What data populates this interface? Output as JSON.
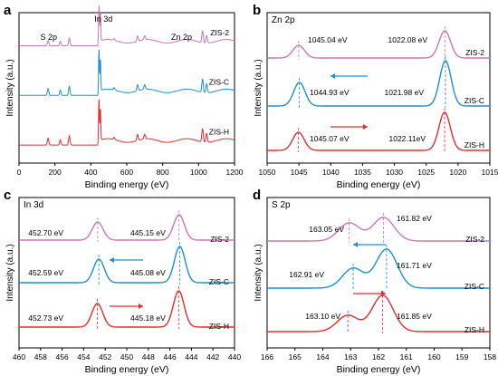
{
  "colors": {
    "zis2": "#cc77b3",
    "zisc": "#1f8fd2",
    "zish": "#e52d2d"
  },
  "chart_data": [
    {
      "panel": "a",
      "type": "line",
      "xlabel": "Binding energy (eV)",
      "ylabel": "Intensity (a.u.)",
      "xlim": [
        0,
        1200
      ],
      "xticks": [
        0,
        200,
        400,
        600,
        800,
        1000,
        1200
      ],
      "series_labels": [
        "ZIS-2",
        "ZIS-C",
        "ZIS-H"
      ],
      "peak_annotations": [
        "S 2p",
        "In 3d",
        "Zn 2p"
      ],
      "series": [
        {
          "name": "ZIS-2",
          "baseline": 0.78,
          "peaks": [
            [
              162,
              0.035
            ],
            [
              230,
              0.03
            ],
            [
              280,
              0.05
            ],
            [
              445,
              0.26
            ],
            [
              453,
              0.2
            ],
            [
              530,
              0.01
            ],
            [
              660,
              0.035
            ],
            [
              700,
              0.025
            ],
            [
              1022,
              0.08
            ],
            [
              1045,
              0.05
            ]
          ]
        },
        {
          "name": "ZIS-C",
          "baseline": 0.45,
          "peaks": [
            [
              162,
              0.045
            ],
            [
              230,
              0.035
            ],
            [
              280,
              0.06
            ],
            [
              445,
              0.3
            ],
            [
              453,
              0.22
            ],
            [
              530,
              0.015
            ],
            [
              660,
              0.04
            ],
            [
              700,
              0.03
            ],
            [
              1022,
              0.09
            ],
            [
              1045,
              0.06
            ]
          ]
        },
        {
          "name": "ZIS-H",
          "baseline": 0.12,
          "peaks": [
            [
              162,
              0.045
            ],
            [
              230,
              0.035
            ],
            [
              280,
              0.06
            ],
            [
              445,
              0.3
            ],
            [
              453,
              0.22
            ],
            [
              530,
              0.015
            ],
            [
              660,
              0.04
            ],
            [
              700,
              0.03
            ],
            [
              1022,
              0.09
            ],
            [
              1045,
              0.06
            ]
          ]
        }
      ]
    },
    {
      "panel": "b",
      "title": "Zn 2p",
      "type": "line",
      "xlabel": "Binding energy (eV)",
      "ylabel": "Intensity (a.u.)",
      "xlim": [
        1050,
        1015
      ],
      "xticks": [
        1050,
        1045,
        1040,
        1035,
        1030,
        1025,
        1020,
        1015
      ],
      "series": [
        {
          "name": "ZIS-2",
          "peaks": [
            1045.04,
            1022.08
          ],
          "peak_labels": [
            "1045.04 eV",
            "1022.08 eV"
          ]
        },
        {
          "name": "ZIS-C",
          "peaks": [
            1044.93,
            1021.98
          ],
          "peak_labels": [
            "1044.93 eV",
            "1021.98 eV"
          ]
        },
        {
          "name": "ZIS-H",
          "peaks": [
            1045.07,
            1022.11
          ],
          "peak_labels": [
            "1045.07 eV",
            "1022.11eV"
          ]
        }
      ],
      "arrows": [
        {
          "series": "ZIS-C",
          "direction": "left"
        },
        {
          "series": "ZIS-H",
          "direction": "right"
        }
      ]
    },
    {
      "panel": "c",
      "title": "In 3d",
      "type": "line",
      "xlabel": "Binding energy (eV)",
      "ylabel": "Intensity (a.u.)",
      "xlim": [
        460,
        440
      ],
      "xticks": [
        460,
        458,
        456,
        454,
        452,
        450,
        448,
        446,
        444,
        442,
        440
      ],
      "series": [
        {
          "name": "ZIS-2",
          "peaks": [
            452.7,
            445.15
          ],
          "peak_labels": [
            "452.70  eV",
            "445.15  eV"
          ]
        },
        {
          "name": "ZIS-C",
          "peaks": [
            452.59,
            445.08
          ],
          "peak_labels": [
            "452.59  eV",
            "445.08  eV"
          ]
        },
        {
          "name": "ZIS-H",
          "peaks": [
            452.73,
            445.18
          ],
          "peak_labels": [
            "452.73  eV",
            "445.18  eV"
          ]
        }
      ],
      "arrows": [
        {
          "series": "ZIS-C",
          "direction": "left"
        },
        {
          "series": "ZIS-H",
          "direction": "right"
        }
      ]
    },
    {
      "panel": "d",
      "title": "S 2p",
      "type": "line",
      "xlabel": "Binding energy (eV)",
      "ylabel": "Intensity (a.u.)",
      "xlim": [
        166,
        158
      ],
      "xticks": [
        166,
        165,
        164,
        163,
        162,
        161,
        160,
        159,
        158
      ],
      "series": [
        {
          "name": "ZIS-2",
          "peaks": [
            163.05,
            161.82
          ],
          "peak_labels": [
            "163.05 eV",
            "161.82 eV"
          ]
        },
        {
          "name": "ZIS-C",
          "peaks": [
            162.91,
            161.71
          ],
          "peak_labels": [
            "162.91 eV",
            "161.71 eV"
          ]
        },
        {
          "name": "ZIS-H",
          "peaks": [
            163.1,
            161.85
          ],
          "peak_labels": [
            "163.10 eV",
            "161.85 eV"
          ]
        }
      ],
      "arrows": [
        {
          "series": "ZIS-C",
          "direction": "left"
        },
        {
          "series": "ZIS-H",
          "direction": "right"
        }
      ]
    }
  ]
}
